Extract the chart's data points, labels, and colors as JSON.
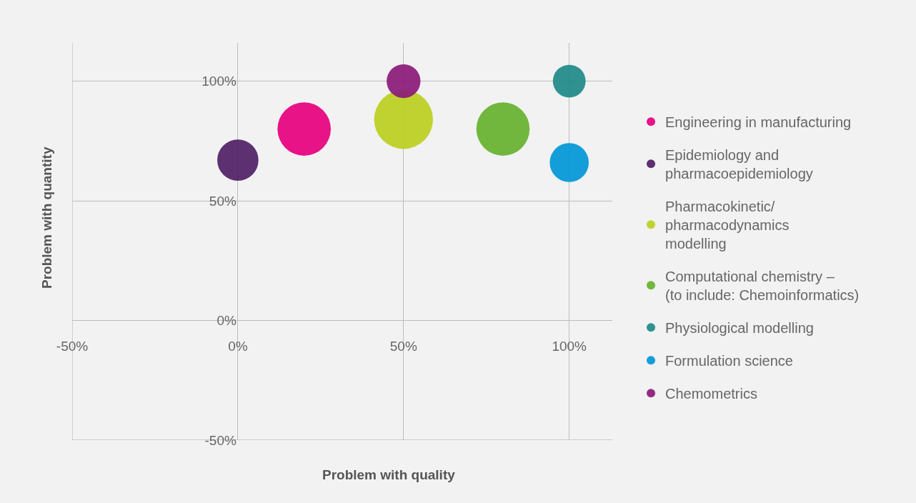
{
  "chart_data": {
    "type": "bubble",
    "xlabel": "Problem with quality",
    "ylabel": "Problem with quantity",
    "xlim": [
      -50,
      113
    ],
    "ylim": [
      -50,
      116
    ],
    "xticks": [
      {
        "value": -50,
        "label": "-50%"
      },
      {
        "value": 0,
        "label": "0%"
      },
      {
        "value": 50,
        "label": "50%"
      },
      {
        "value": 100,
        "label": "100%"
      }
    ],
    "yticks": [
      {
        "value": -50,
        "label": "-50%"
      },
      {
        "value": 0,
        "label": "0%"
      },
      {
        "value": 50,
        "label": "50%"
      },
      {
        "value": 100,
        "label": "100%"
      }
    ],
    "grid": true,
    "legend": "right",
    "marker": "circle",
    "series": [
      {
        "name": "Engineering in manufacturing",
        "color": "#e6007e",
        "x": [
          20
        ],
        "values": [
          80
        ],
        "sizes": [
          0.82
        ]
      },
      {
        "name": "Epidemiology and\npharmacoepidemiology",
        "color": "#4f1f66",
        "x": [
          0
        ],
        "values": [
          67
        ],
        "sizes": [
          0.49
        ]
      },
      {
        "name": "Pharmacokinetic/\npharmacodynamics\nmodelling",
        "color": "#bccf1f",
        "x": [
          50
        ],
        "values": [
          84
        ],
        "sizes": [
          1
        ]
      },
      {
        "name": "Computational chemistry –\n(to include: Chemoinformatics)",
        "color": "#66b22e",
        "x": [
          80
        ],
        "values": [
          80
        ],
        "sizes": [
          0.82
        ]
      },
      {
        "name": "Physiological modelling",
        "color": "#1e8a89",
        "x": [
          100
        ],
        "values": [
          100
        ],
        "sizes": [
          0.31
        ]
      },
      {
        "name": "Formulation science",
        "color": "#0097d8",
        "x": [
          100
        ],
        "values": [
          66
        ],
        "sizes": [
          0.44
        ]
      },
      {
        "name": "Chemometrics",
        "color": "#8c1a79",
        "x": [
          50
        ],
        "values": [
          100
        ],
        "sizes": [
          0.33
        ]
      }
    ]
  }
}
